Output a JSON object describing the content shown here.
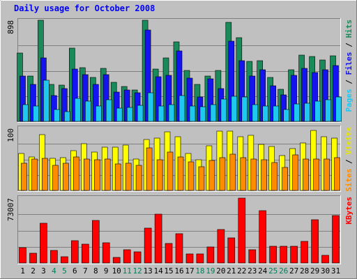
{
  "chart_data": {
    "type": "bar",
    "title": "Daily usage for October 2008",
    "categories": [
      "1",
      "2",
      "3",
      "4",
      "5",
      "6",
      "7",
      "8",
      "9",
      "10",
      "11",
      "12",
      "13",
      "14",
      "15",
      "16",
      "17",
      "18",
      "19",
      "20",
      "21",
      "22",
      "23",
      "24",
      "25",
      "26",
      "27",
      "28",
      "29",
      "30",
      "31"
    ],
    "weekend_days": [
      "4",
      "5",
      "11",
      "12",
      "18",
      "19",
      "25",
      "26"
    ],
    "panels": [
      {
        "id": "pages-files-hits",
        "ymax": 898,
        "ymax_label": "898",
        "right_label_parts": [
          "Pages",
          " / ",
          "Files",
          " / ",
          "Hits"
        ],
        "series": [
          {
            "name": "Hits",
            "color": "#1a8a5a",
            "values": [
              606,
              403,
              898,
              331,
              320,
              651,
              479,
              393,
              470,
              347,
              308,
              277,
              898,
              467,
              562,
              707,
              452,
              327,
              405,
              450,
              880,
              745,
              535,
              540,
              393,
              286,
              461,
              590,
              578,
              544,
              581
            ]
          },
          {
            "name": "Files",
            "color": "#1414f0",
            "values": [
              403,
              331,
              566,
              229,
              294,
              464,
              412,
              331,
              412,
              263,
              277,
              253,
              810,
              395,
              411,
              627,
              386,
              215,
              379,
              294,
              713,
              539,
              405,
              458,
              317,
              238,
              411,
              473,
              434,
              456,
              493
            ]
          },
          {
            "name": "Pages",
            "color": "#1ec8f0",
            "values": [
              148,
              134,
              368,
              106,
              87,
              202,
              182,
              134,
              193,
              119,
              121,
              144,
              251,
              134,
              146,
              227,
              134,
              133,
              146,
              199,
              225,
              215,
              148,
              134,
              138,
              106,
              156,
              163,
              181,
              194,
              216
            ]
          }
        ]
      },
      {
        "id": "sites-visits",
        "ymax": 100,
        "ymax_label": "100",
        "right_label_parts": [
          "Sites",
          " / ",
          "Visits"
        ],
        "series": [
          {
            "name": "Visits",
            "color": "#ffff00",
            "values": [
              59,
              54,
              90,
              52,
              53,
              64,
              75,
              62,
              70,
              70,
              73,
              51,
              82,
              84,
              94,
              87,
              59,
              49,
              72,
              95,
              95,
              86,
              89,
              74,
              71,
              56,
              67,
              76,
              97,
              86,
              84
            ]
          },
          {
            "name": "Sites",
            "color": "#ff8c00",
            "values": [
              44,
              50,
              52,
              41,
              44,
              54,
              51,
              49,
              51,
              43,
              44,
              41,
              69,
              49,
              62,
              54,
              46,
              38,
              48,
              53,
              58,
              53,
              51,
              49,
              45,
              37,
              57,
              51,
              51,
              51,
              53
            ]
          }
        ]
      },
      {
        "id": "kbytes",
        "ymax": 73007,
        "ymax_label": "73007",
        "right_label_parts": [
          "KBytes"
        ],
        "series": [
          {
            "name": "KBytes",
            "color": "#ff0000",
            "values": [
              17000,
              11000,
              45000,
              14000,
              7000,
              25000,
              21000,
              48000,
              23000,
              6500,
              15000,
              12500,
              39000,
              55000,
              22000,
              33000,
              10500,
              10500,
              18000,
              38000,
              28000,
              73007,
              15000,
              59000,
              19000,
              19000,
              19000,
              24000,
              49000,
              9000,
              53000
            ]
          }
        ]
      }
    ]
  }
}
